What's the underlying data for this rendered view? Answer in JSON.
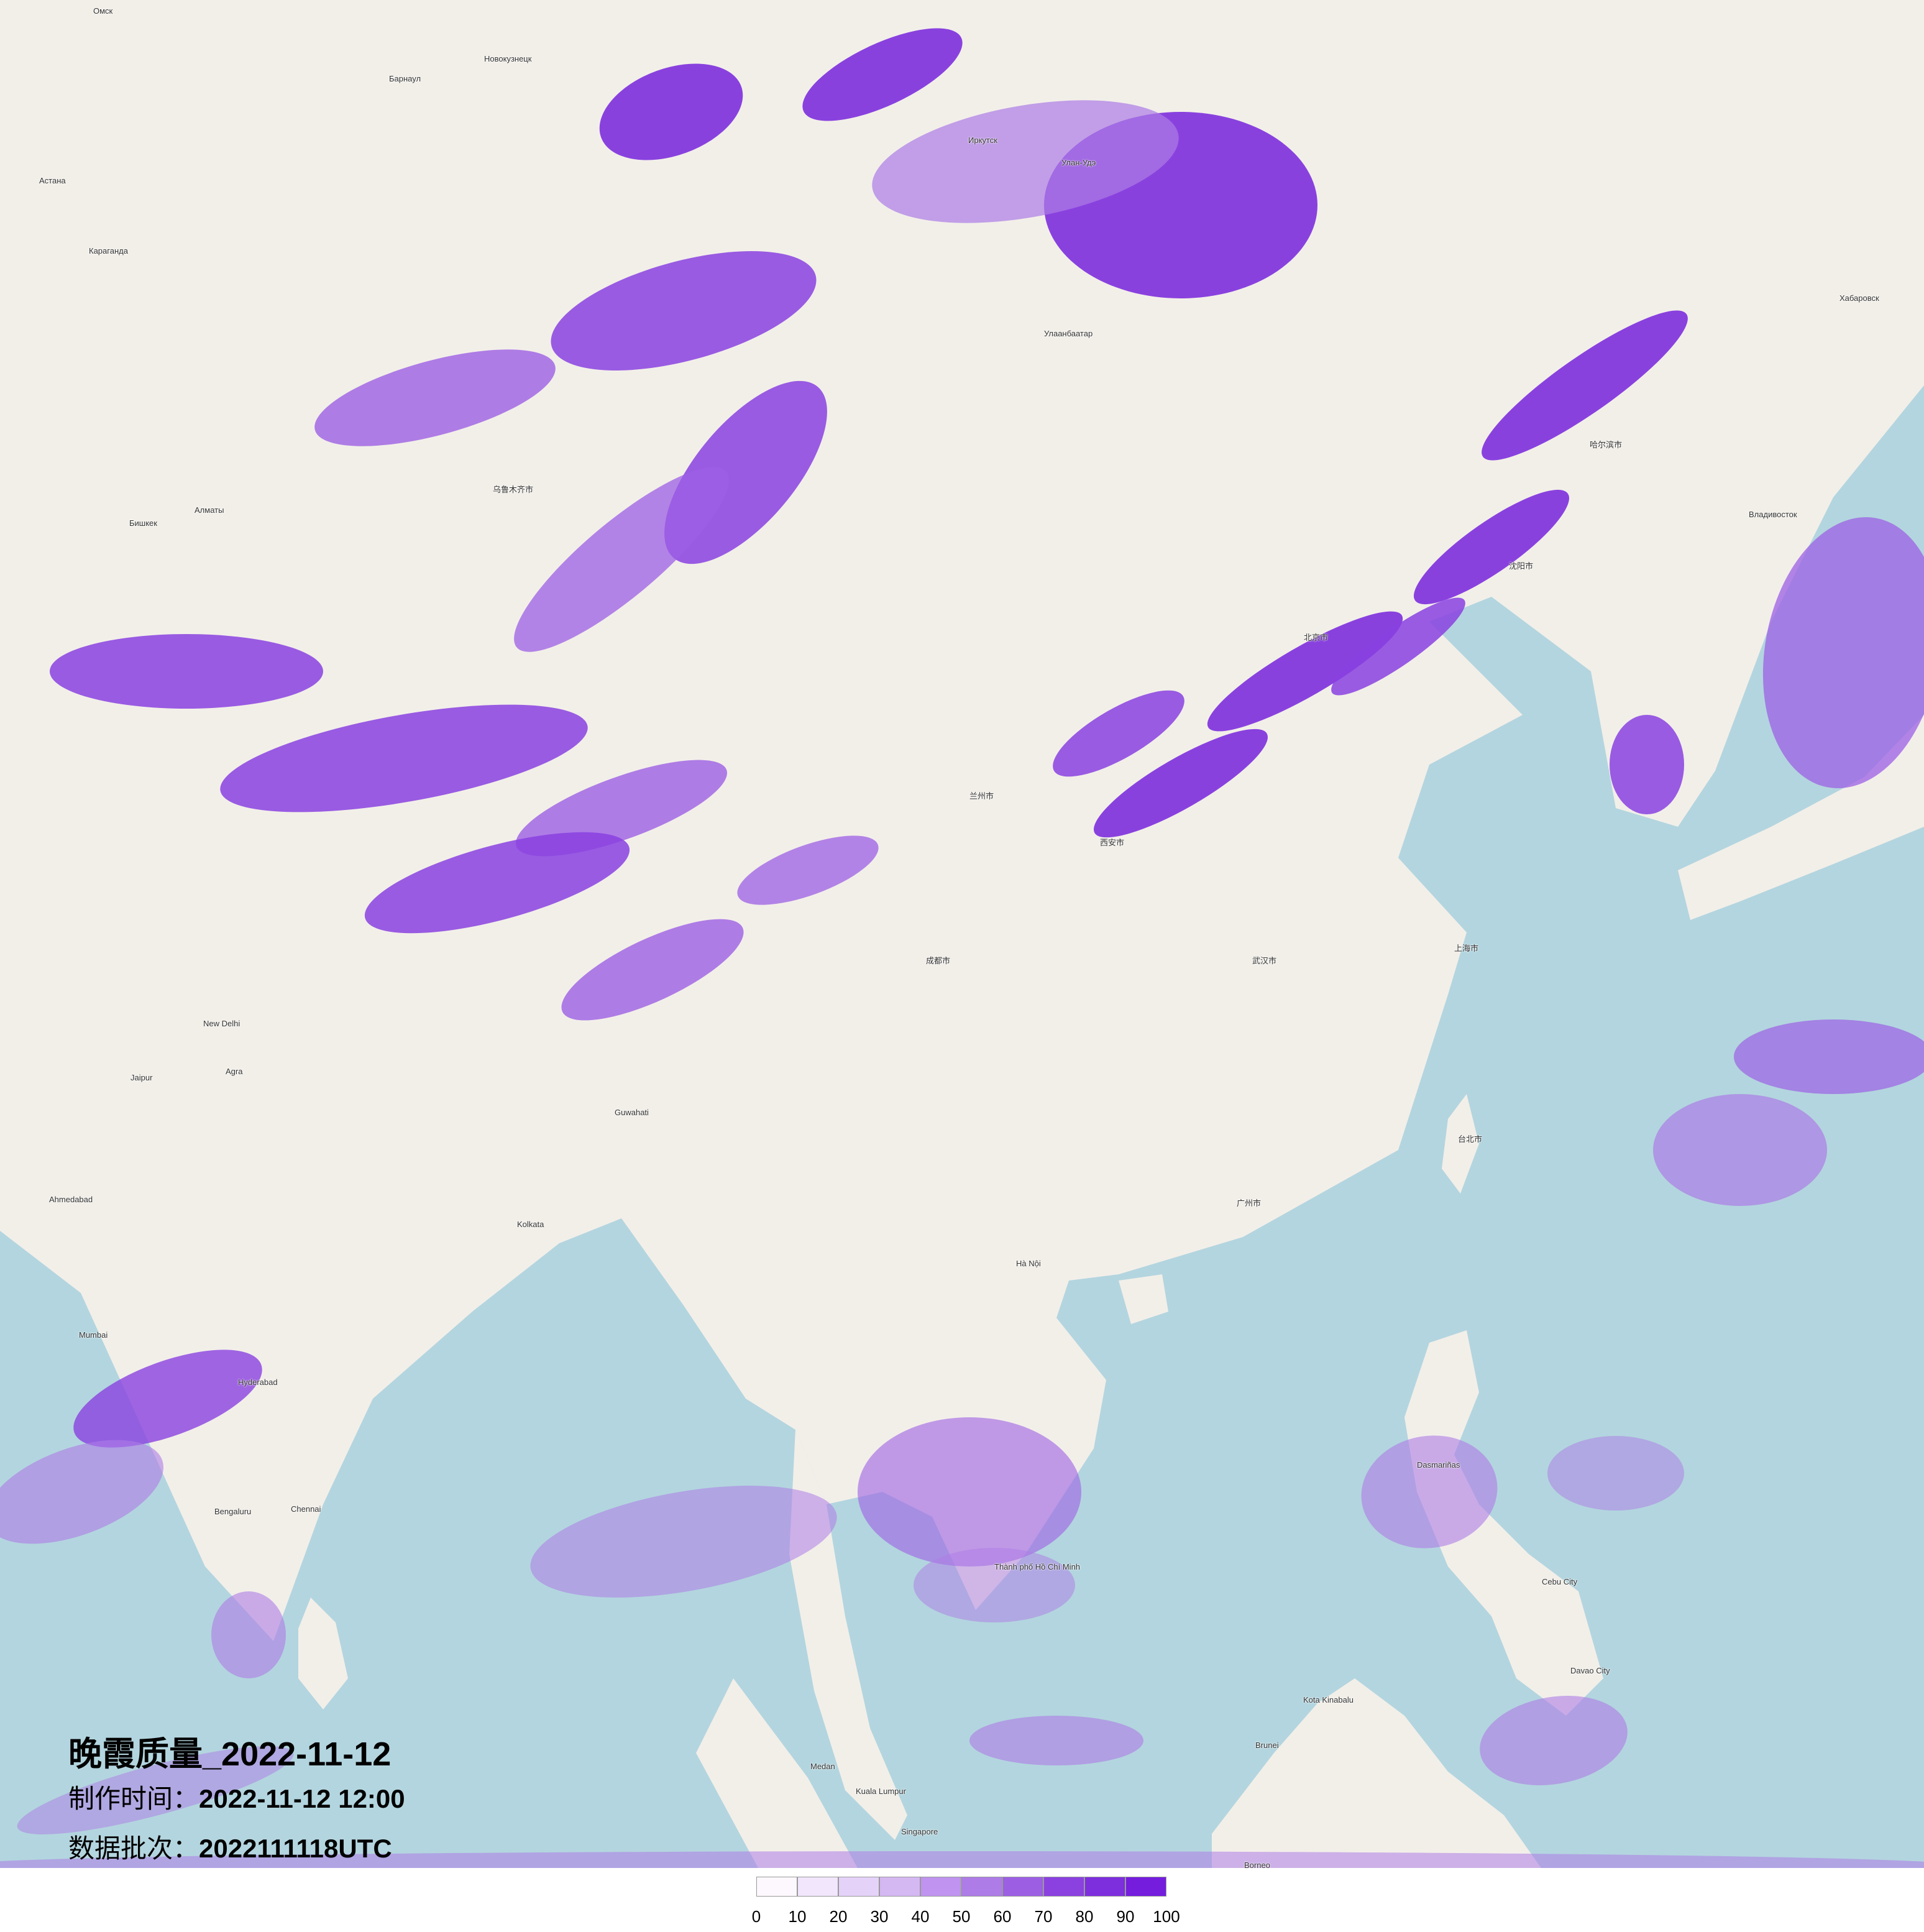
{
  "title": "晚霞质量_2022-11-12",
  "production_time": {
    "label": "制作时间：",
    "value": "2022-11-12 12:00"
  },
  "data_batch": {
    "label": "数据批次：",
    "value": "2022111118UTC"
  },
  "legend": {
    "ticks": [
      "0",
      "10",
      "20",
      "30",
      "40",
      "50",
      "60",
      "70",
      "80",
      "90",
      "100"
    ],
    "colors": [
      "#fdf8fd",
      "#f1e6fb",
      "#e5d2f9",
      "#d4b8f2",
      "#bf93ef",
      "#ad7ce6",
      "#9c5fe4",
      "#8a41e0",
      "#7d2edd",
      "#741ddd"
    ]
  },
  "map_colors": {
    "land": "#f2efe9",
    "sea": "#b3d5df",
    "border": "#c9a3c9"
  },
  "places": [
    "Омск",
    "Барнаул",
    "Новокузнецк",
    "Астана",
    "Караганда",
    "Алматы",
    "Бишкек",
    "Иркутск",
    "Улан-Удэ",
    "Улаанбаатар",
    "Хабаровск",
    "Владивосток",
    "New Delhi",
    "Jaipur",
    "Agra",
    "Ahmedabad",
    "Kolkata",
    "Mumbai",
    "Hyderabad",
    "Chennai",
    "Bengaluru",
    "Guwahati",
    "Hà Nội",
    "Thành phố Hồ Chí Minh",
    "Kuala Lumpur",
    "Singapore",
    "Medan",
    "Dasmariñas",
    "Cebu City",
    "Davao City",
    "Kota Kinabalu",
    "Brunei",
    "Borneo",
    "北京市",
    "上海市",
    "广州市",
    "武汉市",
    "成都市",
    "西安市",
    "沈阳市",
    "哈尔滨市",
    "台北市",
    "乌鲁木齐市",
    "兰州市"
  ]
}
